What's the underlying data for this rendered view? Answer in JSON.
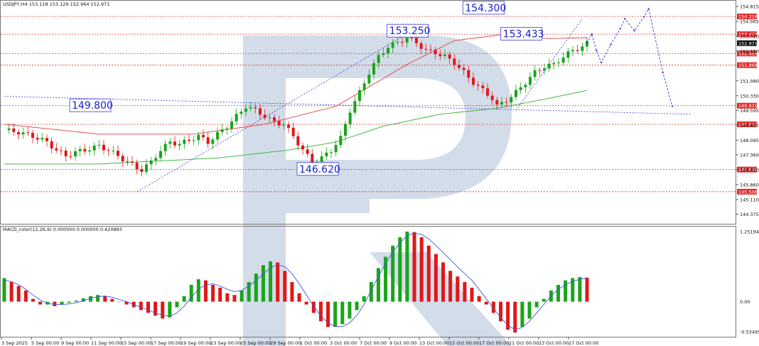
{
  "header": {
    "symbol_line": "USDJPY,H4  153.118 153.129 152.964 152.971",
    "macd_label": "MACD_color(12,26,9) 0.000000 0.000000 0.420883"
  },
  "colors": {
    "bull": "#1aa51a",
    "bear": "#e01818",
    "level_line": "#e03030",
    "level_box": "#e02a2a",
    "forecast": "#3a3ae0",
    "ma_red": "#e04040",
    "ma_green": "#30b030",
    "macd_signal": "#3b55e0",
    "annotation": "#1a20c8",
    "watermark": "#d3dce9"
  },
  "chart_data": [
    {
      "type": "candlestick",
      "title": "USDJPY,H4",
      "quote": {
        "open": 153.118,
        "high": 153.129,
        "low": 152.964,
        "close": 152.971
      },
      "ylim": [
        144.0,
        155.0
      ],
      "price_ticks": [
        "154.815",
        "154.065",
        "153.320",
        "152.580",
        "151.080",
        "150.330",
        "149.595",
        "148.855",
        "148.095",
        "147.360",
        "146.610",
        "145.860",
        "145.110",
        "144.375"
      ],
      "level_lines": [
        "154.316",
        "153.423",
        "152.455",
        "151.868",
        "149.831",
        "148.892",
        "146.620",
        "145.506"
      ],
      "current_price": "152.971",
      "x_labels": [
        "3 Sep 2025",
        "5 Sep 00:00",
        "9 Sep 00:00",
        "11 Sep 00:00",
        "15 Sep 00:00",
        "17 Sep 00:00",
        "19 Sep 00:00",
        "23 Sep 00:00",
        "25 Sep 00:00",
        "29 Sep 00:00",
        "1 Oct 00:00",
        "3 Oct 00:00",
        "7 Oct 00:00",
        "9 Oct 00:00",
        "13 Oct 00:00",
        "15 Oct 00:00",
        "17 Oct 00:00",
        "21 Oct 00:00",
        "23 Oct 00:00",
        "27 Oct 00:00"
      ],
      "annotations": [
        "154.300",
        "153.250",
        "153.433",
        "149.800",
        "146.620"
      ],
      "close_path": [
        [
          0,
          148.6
        ],
        [
          3,
          148.5
        ],
        [
          6,
          148.3
        ],
        [
          9,
          148.0
        ],
        [
          11,
          147.6
        ],
        [
          13,
          147.3
        ],
        [
          15,
          147.5
        ],
        [
          17,
          147.6
        ],
        [
          20,
          147.8
        ],
        [
          22,
          147.6
        ],
        [
          24,
          147.3
        ],
        [
          26,
          147.0
        ],
        [
          28,
          146.7
        ],
        [
          29,
          146.6
        ],
        [
          31,
          147.0
        ],
        [
          33,
          147.6
        ],
        [
          35,
          148.0
        ],
        [
          37,
          147.9
        ],
        [
          39,
          148.1
        ],
        [
          41,
          148.3
        ],
        [
          43,
          148.0
        ],
        [
          45,
          148.4
        ],
        [
          47,
          148.8
        ],
        [
          49,
          149.3
        ],
        [
          51,
          149.8
        ],
        [
          53,
          149.6
        ],
        [
          55,
          149.3
        ],
        [
          57,
          149.0
        ],
        [
          59,
          148.9
        ],
        [
          61,
          148.3
        ],
        [
          63,
          147.6
        ],
        [
          65,
          147.0
        ],
        [
          67,
          147.2
        ],
        [
          69,
          147.6
        ],
        [
          71,
          148.2
        ],
        [
          73,
          149.6
        ],
        [
          75,
          150.5
        ],
        [
          77,
          151.5
        ],
        [
          79,
          152.3
        ],
        [
          81,
          152.8
        ],
        [
          83,
          153.0
        ],
        [
          85,
          153.25
        ],
        [
          87,
          153.0
        ],
        [
          89,
          152.6
        ],
        [
          91,
          152.5
        ],
        [
          93,
          152.3
        ],
        [
          95,
          152.0
        ],
        [
          97,
          151.5
        ],
        [
          99,
          151.0
        ],
        [
          101,
          150.6
        ],
        [
          103,
          150.2
        ],
        [
          104,
          149.8
        ],
        [
          106,
          150.1
        ],
        [
          108,
          150.5
        ],
        [
          110,
          151.0
        ],
        [
          112,
          151.5
        ],
        [
          114,
          151.8
        ],
        [
          116,
          151.9
        ],
        [
          118,
          152.3
        ],
        [
          120,
          152.6
        ],
        [
          122,
          152.8
        ],
        [
          123,
          152.97
        ]
      ],
      "forecast_path": [
        [
          123,
          152.97
        ],
        [
          124,
          153.43
        ],
        [
          125,
          152.6
        ],
        [
          126,
          152.0
        ],
        [
          128,
          152.9
        ],
        [
          130,
          153.7
        ],
        [
          131,
          154.2
        ],
        [
          133,
          153.6
        ],
        [
          135,
          154.3
        ],
        [
          136,
          154.7
        ],
        [
          139,
          151.5
        ],
        [
          141,
          149.8
        ]
      ],
      "wedge_lines": [
        [
          [
            0,
            150.3
          ],
          [
            145,
            149.4
          ]
        ],
        [
          [
            28,
            145.5
          ],
          [
            84,
            153.3
          ]
        ],
        [
          [
            108,
            149.6
          ],
          [
            122,
            154.2
          ]
        ]
      ],
      "ma_red": [
        [
          0,
          148.9
        ],
        [
          20,
          148.4
        ],
        [
          40,
          148.4
        ],
        [
          55,
          148.9
        ],
        [
          70,
          149.8
        ],
        [
          85,
          151.9
        ],
        [
          95,
          153.1
        ],
        [
          105,
          153.4
        ],
        [
          115,
          153.2
        ],
        [
          123,
          153.25
        ]
      ],
      "ma_green": [
        [
          0,
          146.9
        ],
        [
          20,
          146.9
        ],
        [
          45,
          147.2
        ],
        [
          60,
          147.6
        ],
        [
          70,
          148.0
        ],
        [
          80,
          148.8
        ],
        [
          92,
          149.4
        ],
        [
          104,
          149.7
        ],
        [
          115,
          150.2
        ],
        [
          123,
          150.6
        ]
      ]
    },
    {
      "type": "bar",
      "title": "MACD_color(12,26,9)",
      "ylim": [
        -0.6,
        1.3
      ],
      "tick_labels": [
        "1.25194",
        "0.00",
        "-0.53495"
      ],
      "values": [
        0.42,
        0.35,
        0.28,
        0.2,
        0.05,
        -0.05,
        -0.05,
        -0.08,
        -0.05,
        -0.02,
        0.02,
        0.06,
        0.1,
        0.12,
        0.1,
        0.05,
        0.0,
        -0.05,
        -0.1,
        -0.15,
        -0.2,
        -0.25,
        -0.3,
        -0.28,
        -0.1,
        0.1,
        0.3,
        0.4,
        0.38,
        0.3,
        0.25,
        0.15,
        0.12,
        0.2,
        0.35,
        0.5,
        0.65,
        0.72,
        0.7,
        0.55,
        0.35,
        0.15,
        -0.05,
        -0.2,
        -0.35,
        -0.45,
        -0.45,
        -0.4,
        -0.3,
        -0.15,
        0.1,
        0.35,
        0.6,
        0.8,
        1.0,
        1.15,
        1.25,
        1.24,
        1.15,
        1.0,
        0.85,
        0.7,
        0.55,
        0.45,
        0.35,
        0.25,
        0.1,
        -0.05,
        -0.2,
        -0.35,
        -0.5,
        -0.55,
        -0.45,
        -0.3,
        -0.1,
        0.05,
        0.2,
        0.3,
        0.38,
        0.42,
        0.44,
        0.43
      ],
      "signal": [
        0.38,
        0.36,
        0.3,
        0.22,
        0.12,
        0.03,
        -0.03,
        -0.05,
        -0.05,
        -0.04,
        -0.02,
        0.02,
        0.06,
        0.09,
        0.1,
        0.08,
        0.04,
        0.0,
        -0.05,
        -0.1,
        -0.15,
        -0.2,
        -0.24,
        -0.26,
        -0.2,
        -0.08,
        0.08,
        0.22,
        0.3,
        0.32,
        0.28,
        0.22,
        0.18,
        0.2,
        0.28,
        0.38,
        0.5,
        0.6,
        0.66,
        0.62,
        0.5,
        0.32,
        0.12,
        -0.08,
        -0.25,
        -0.38,
        -0.44,
        -0.44,
        -0.38,
        -0.25,
        -0.05,
        0.2,
        0.45,
        0.68,
        0.88,
        1.05,
        1.18,
        1.22,
        1.2,
        1.12,
        1.0,
        0.88,
        0.75,
        0.62,
        0.5,
        0.38,
        0.22,
        0.05,
        -0.12,
        -0.28,
        -0.42,
        -0.5,
        -0.46,
        -0.35,
        -0.2,
        -0.05,
        0.1,
        0.22,
        0.3,
        0.36,
        0.4,
        0.42
      ]
    }
  ]
}
